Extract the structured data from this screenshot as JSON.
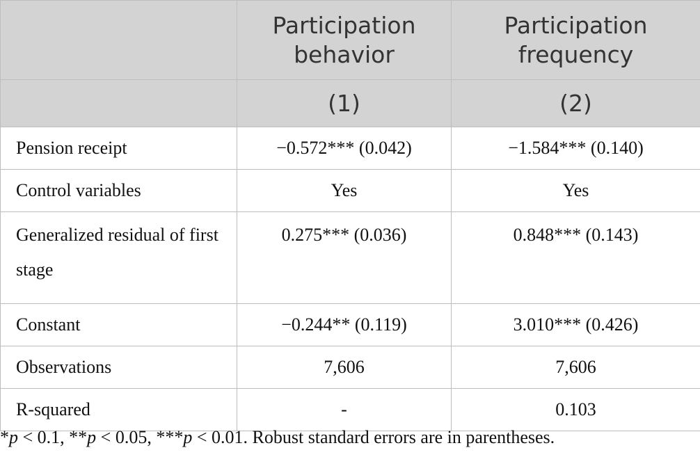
{
  "header": {
    "col1_title": "Participation behavior",
    "col2_title": "Participation frequency",
    "col1_num": "(1)",
    "col2_num": "(2)"
  },
  "rows": [
    {
      "label": "Pension receipt",
      "c1": "−0.572*** (0.042)",
      "c2": "−1.584*** (0.140)"
    },
    {
      "label": "Control variables",
      "c1": "Yes",
      "c2": "Yes"
    },
    {
      "label": "Generalized residual of first stage",
      "c1": "0.275*** (0.036)",
      "c2": "0.848*** (0.143)"
    },
    {
      "label": "Constant",
      "c1": "−0.244** (0.119)",
      "c2": "3.010*** (0.426)"
    },
    {
      "label": "Observations",
      "c1": "7,606",
      "c2": "7,606"
    },
    {
      "label": "R-squared",
      "c1": "-",
      "c2": "0.103"
    }
  ],
  "footnote": {
    "s1": "*",
    "p1": "p",
    "t1": " < 0.1, **",
    "p2": "p",
    "t2": " < 0.05, ***",
    "p3": "p",
    "t3": " < 0.01. Robust standard errors are in parentheses."
  }
}
